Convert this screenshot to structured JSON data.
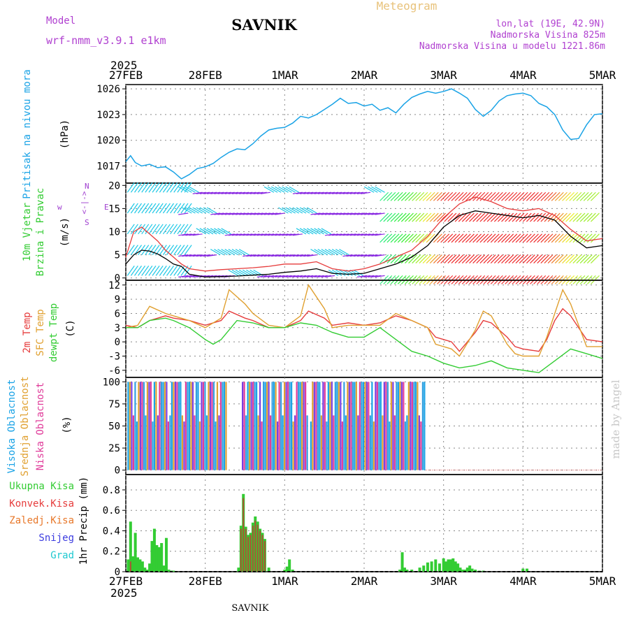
{
  "header": {
    "model_label": "Model",
    "model_name": "wrf-nmm_v3.9.1 e1km",
    "station": "SAVNIK",
    "title": "Meteogram",
    "lonlat": "lon,lat (19E, 42.9N)",
    "elevation": "Nadmorska Visina 825m",
    "model_elevation": "Nadmorska Visina u modelu 1221.86m",
    "footer_station": "SAVNIK",
    "watermark": "made by Angel"
  },
  "colors": {
    "pressure": "#1aa3e6",
    "temp2m": "#e63c3c",
    "sfc_temp": "#e0a030",
    "dewpoint": "#33cc33",
    "wind_purple": "#8a2be2",
    "wind_cyan": "#1ec8e6",
    "precip_total": "#33cc33",
    "precip_conv": "#cc3333",
    "grid": "#888888"
  },
  "chart_data": [
    {
      "type": "line",
      "title": "",
      "ylabel_lines": [
        "Pritisak na nivou mora",
        "(hPa)"
      ],
      "x_year_top": "2025",
      "x_year_bottom": "2025",
      "xticks": [
        "27FEB",
        "28FEB",
        "1MAR",
        "2MAR",
        "3MAR",
        "4MAR",
        "5MAR"
      ],
      "ylim": [
        1015,
        1026.5
      ],
      "yticks": [
        1017,
        1020,
        1023,
        1026
      ],
      "grid": true,
      "series": [
        {
          "name": "",
          "x": [
            0,
            0.06,
            0.12,
            0.2,
            0.3,
            0.4,
            0.5,
            0.6,
            0.7,
            0.8,
            0.9,
            1.0,
            1.1,
            1.2,
            1.3,
            1.4,
            1.5,
            1.6,
            1.7,
            1.8,
            1.9,
            2.0,
            2.1,
            2.2,
            2.3,
            2.4,
            2.5,
            2.6,
            2.7,
            2.8,
            2.9,
            3.0,
            3.1,
            3.2,
            3.3,
            3.4,
            3.5,
            3.6,
            3.7,
            3.8,
            3.9,
            4.0,
            4.1,
            4.2,
            4.3,
            4.4,
            4.5,
            4.6,
            4.7,
            4.8,
            4.9,
            5.0,
            5.1,
            5.2,
            5.3,
            5.4,
            5.5,
            5.6,
            5.7,
            5.8,
            5.9,
            6.0
          ],
          "values": [
            1017.5,
            1018.2,
            1017.4,
            1017.0,
            1017.2,
            1016.8,
            1016.9,
            1016.3,
            1015.5,
            1016.0,
            1016.7,
            1016.9,
            1017.3,
            1018.0,
            1018.6,
            1019.0,
            1018.9,
            1019.6,
            1020.5,
            1021.2,
            1021.4,
            1021.5,
            1022.0,
            1022.8,
            1022.6,
            1023.0,
            1023.6,
            1024.2,
            1024.9,
            1024.3,
            1024.4,
            1024.0,
            1024.2,
            1023.5,
            1023.8,
            1023.2,
            1024.2,
            1025.0,
            1025.4,
            1025.7,
            1025.5,
            1025.7,
            1026.0,
            1025.5,
            1024.9,
            1023.6,
            1022.8,
            1023.5,
            1024.6,
            1025.2,
            1025.4,
            1025.5,
            1025.2,
            1024.3,
            1023.9,
            1023.0,
            1021.2,
            1020.1,
            1020.2,
            1021.8,
            1023.0,
            1023.1
          ]
        }
      ]
    },
    {
      "type": "line",
      "title": "",
      "ylabel_lines": [
        "10m Vjetar",
        "Brzina i Pravac",
        "(m/s)"
      ],
      "compass_labels": [
        "w",
        "<-|->",
        "E",
        "N",
        "S"
      ],
      "xticks": [
        "27FEB",
        "28FEB",
        "1MAR",
        "2MAR",
        "3MAR",
        "4MAR",
        "5MAR"
      ],
      "ylim": [
        -0.5,
        20.5
      ],
      "yticks": [
        0,
        5,
        10,
        15,
        20
      ],
      "grid": true,
      "series": [
        {
          "name": "",
          "x": [
            0,
            0.1,
            0.2,
            0.3,
            0.4,
            0.5,
            0.6,
            0.7,
            0.8,
            1.0,
            1.2,
            1.4,
            1.6,
            1.8,
            2.0,
            2.2,
            2.4,
            2.6,
            2.8,
            3.0,
            3.2,
            3.4,
            3.6,
            3.8,
            4.0,
            4.2,
            4.4,
            4.6,
            4.8,
            5.0,
            5.2,
            5.4,
            5.6,
            5.8,
            6.0
          ],
          "values": [
            3.0,
            5.0,
            6.0,
            5.8,
            5.2,
            4.2,
            3.0,
            2.5,
            0.8,
            0.2,
            0.3,
            0.4,
            0.6,
            0.8,
            1.2,
            1.5,
            2.0,
            1.0,
            0.8,
            1.0,
            2.0,
            3.0,
            4.5,
            7.0,
            11.0,
            13.5,
            14.5,
            14.0,
            13.5,
            13.0,
            13.5,
            12.5,
            9.0,
            6.5,
            7.0
          ]
        },
        {
          "name": "",
          "x": [
            0,
            0.1,
            0.2,
            0.3,
            0.4,
            0.5,
            0.6,
            0.7,
            0.8,
            1.0,
            1.2,
            1.4,
            1.6,
            1.8,
            2.0,
            2.2,
            2.4,
            2.6,
            2.8,
            3.0,
            3.2,
            3.4,
            3.6,
            3.8,
            4.0,
            4.2,
            4.4,
            4.6,
            4.8,
            5.0,
            5.2,
            5.4,
            5.6,
            5.8,
            6.0
          ],
          "values": [
            4.5,
            10.0,
            11.0,
            9.5,
            8.0,
            6.0,
            4.5,
            3.0,
            2.0,
            1.5,
            1.8,
            2.0,
            2.2,
            2.5,
            3.0,
            3.0,
            3.5,
            2.0,
            1.5,
            2.0,
            3.0,
            4.5,
            6.0,
            9.0,
            13.0,
            16.0,
            17.5,
            16.5,
            15.0,
            14.5,
            15.0,
            13.5,
            10.5,
            8.0,
            8.5
          ]
        }
      ]
    },
    {
      "type": "line",
      "title": "",
      "ylabel_lines": [
        "2m Temp",
        "SFC Temp",
        "dewpt Temp",
        "(C)"
      ],
      "xticks": [
        "27FEB",
        "28FEB",
        "1MAR",
        "2MAR",
        "3MAR",
        "4MAR",
        "5MAR"
      ],
      "ylim": [
        -7.5,
        13
      ],
      "yticks": [
        -6,
        -3,
        0,
        3,
        6,
        9,
        12
      ],
      "grid": true,
      "series": [
        {
          "name": "2m Temp",
          "x": [
            0,
            0.15,
            0.3,
            0.5,
            0.6,
            0.8,
            1.0,
            1.2,
            1.3,
            1.5,
            1.6,
            1.8,
            2.0,
            2.2,
            2.3,
            2.5,
            2.6,
            2.8,
            3.0,
            3.2,
            3.4,
            3.6,
            3.8,
            3.9,
            4.1,
            4.2,
            4.4,
            4.5,
            4.6,
            4.8,
            4.9,
            5.0,
            5.2,
            5.3,
            5.4,
            5.5,
            5.6,
            5.8,
            6.0
          ],
          "values": [
            3.5,
            3.0,
            4.5,
            5.5,
            5.0,
            4.5,
            3.5,
            4.5,
            6.5,
            5.0,
            4.5,
            3.0,
            3.0,
            4.5,
            6.5,
            5.0,
            3.5,
            4.0,
            3.5,
            4.0,
            5.5,
            4.5,
            3.0,
            1.0,
            0.0,
            -2.0,
            2.0,
            4.5,
            4.0,
            1.0,
            -1.0,
            -1.5,
            -2.0,
            0.5,
            4.5,
            7.0,
            5.5,
            0.5,
            0.0
          ]
        },
        {
          "name": "SFC Temp",
          "x": [
            0,
            0.15,
            0.3,
            0.5,
            0.6,
            0.8,
            1.0,
            1.2,
            1.3,
            1.5,
            1.6,
            1.8,
            2.0,
            2.2,
            2.3,
            2.5,
            2.6,
            2.8,
            3.0,
            3.2,
            3.4,
            3.6,
            3.8,
            3.9,
            4.1,
            4.2,
            4.4,
            4.5,
            4.6,
            4.8,
            4.9,
            5.0,
            5.2,
            5.3,
            5.4,
            5.5,
            5.6,
            5.8,
            6.0
          ],
          "values": [
            3.0,
            3.5,
            7.5,
            6.0,
            5.5,
            4.5,
            3.0,
            5.0,
            11.0,
            8.0,
            6.0,
            3.5,
            3.0,
            5.5,
            12.0,
            7.0,
            3.0,
            3.5,
            3.5,
            3.5,
            6.0,
            4.5,
            3.0,
            -0.5,
            -1.5,
            -3.0,
            2.5,
            6.5,
            5.5,
            -0.5,
            -2.5,
            -3.0,
            -3.0,
            1.0,
            6.0,
            11.0,
            8.0,
            -1.0,
            -1.0
          ]
        },
        {
          "name": "dewpt Temp",
          "x": [
            0,
            0.15,
            0.3,
            0.5,
            0.6,
            0.8,
            1.0,
            1.1,
            1.2,
            1.4,
            1.6,
            1.8,
            2.0,
            2.2,
            2.4,
            2.6,
            2.8,
            3.0,
            3.2,
            3.4,
            3.6,
            3.8,
            4.0,
            4.2,
            4.4,
            4.6,
            4.8,
            5.0,
            5.2,
            5.4,
            5.6,
            5.8,
            6.0
          ],
          "values": [
            3.0,
            3.0,
            4.5,
            5.0,
            4.5,
            3.0,
            0.5,
            -0.5,
            0.5,
            4.5,
            4.0,
            3.0,
            3.0,
            4.0,
            3.5,
            2.0,
            1.0,
            1.0,
            3.0,
            0.5,
            -2.0,
            -3.0,
            -4.5,
            -5.5,
            -5.0,
            -4.0,
            -5.5,
            -6.0,
            -6.5,
            -4.0,
            -1.5,
            -2.5,
            -3.5
          ]
        }
      ]
    },
    {
      "type": "bar",
      "title": "",
      "ylabel_lines": [
        "Visoka Oblacnost",
        "Srednja Oblacnost",
        "Niska Oblacnost",
        "(%)"
      ],
      "xticks": [
        "27FEB",
        "28FEB",
        "1MAR",
        "2MAR",
        "3MAR",
        "4MAR",
        "5MAR"
      ],
      "ylim": [
        -5,
        105
      ],
      "yticks": [
        0,
        25,
        50,
        75,
        100
      ],
      "grid": true,
      "cloud_ranges": [
        [
          0.03,
          1.28
        ],
        [
          1.47,
          2.3
        ],
        [
          2.33,
          3.78
        ]
      ],
      "cloud_level": 100
    },
    {
      "type": "bar",
      "title": "",
      "ylabel_lines": [
        "1hr Precip (mm)"
      ],
      "legend": [
        "Ukupna Kisa",
        "Konvek.Kisa",
        "Zaledj.Kisa",
        "Snijeg",
        "Grad"
      ],
      "xticks": [
        "27FEB",
        "28FEB",
        "1MAR",
        "2MAR",
        "3MAR",
        "4MAR",
        "5MAR"
      ],
      "x_year_bottom": "2025",
      "ylim": [
        0,
        0.95
      ],
      "yticks": [
        0,
        0.2,
        0.4,
        0.6,
        0.8
      ],
      "grid": true,
      "x": [
        0.03,
        0.06,
        0.09,
        0.12,
        0.15,
        0.18,
        0.21,
        0.24,
        0.27,
        0.3,
        0.33,
        0.36,
        0.39,
        0.42,
        0.45,
        0.48,
        0.51,
        0.54,
        0.57,
        0.6,
        1.42,
        1.45,
        1.48,
        1.51,
        1.54,
        1.57,
        1.6,
        1.63,
        1.66,
        1.69,
        1.72,
        1.75,
        1.8,
        2.0,
        2.03,
        2.06,
        2.1,
        3.45,
        3.48,
        3.51,
        3.54,
        3.6,
        3.7,
        3.75,
        3.8,
        3.85,
        3.9,
        3.95,
        4.0,
        4.03,
        4.06,
        4.09,
        4.12,
        4.15,
        4.18,
        4.21,
        4.24,
        4.27,
        4.3,
        4.33,
        4.36,
        4.4,
        4.45,
        4.5,
        5.0,
        5.05
      ],
      "values": [
        0.12,
        0.49,
        0.15,
        0.38,
        0.14,
        0.12,
        0.1,
        0.04,
        0.02,
        0.08,
        0.3,
        0.42,
        0.26,
        0.24,
        0.28,
        0.06,
        0.33,
        0.02,
        0.01,
        0.01,
        0.04,
        0.45,
        0.76,
        0.44,
        0.36,
        0.38,
        0.48,
        0.54,
        0.49,
        0.42,
        0.38,
        0.32,
        0.04,
        0.02,
        0.05,
        0.12,
        0.02,
        0.02,
        0.19,
        0.04,
        0.02,
        0.02,
        0.04,
        0.06,
        0.09,
        0.1,
        0.12,
        0.08,
        0.13,
        0.1,
        0.12,
        0.12,
        0.13,
        0.1,
        0.08,
        0.04,
        0.02,
        0.02,
        0.04,
        0.06,
        0.03,
        0.02,
        0.01,
        0.01,
        0.03,
        0.03
      ],
      "conv_values": [
        0,
        0.1,
        0,
        0,
        0,
        0,
        0,
        0,
        0,
        0,
        0,
        0,
        0,
        0,
        0,
        0,
        0,
        0,
        0,
        0,
        0,
        0.42,
        0.72,
        0.42,
        0.34,
        0.36,
        0.45,
        0.5,
        0.46,
        0.4,
        0.36,
        0.3,
        0,
        0,
        0,
        0,
        0,
        0,
        0,
        0,
        0,
        0,
        0,
        0,
        0,
        0,
        0,
        0,
        0,
        0,
        0,
        0,
        0,
        0,
        0,
        0,
        0,
        0,
        0,
        0,
        0,
        0,
        0,
        0,
        0,
        0
      ]
    }
  ]
}
